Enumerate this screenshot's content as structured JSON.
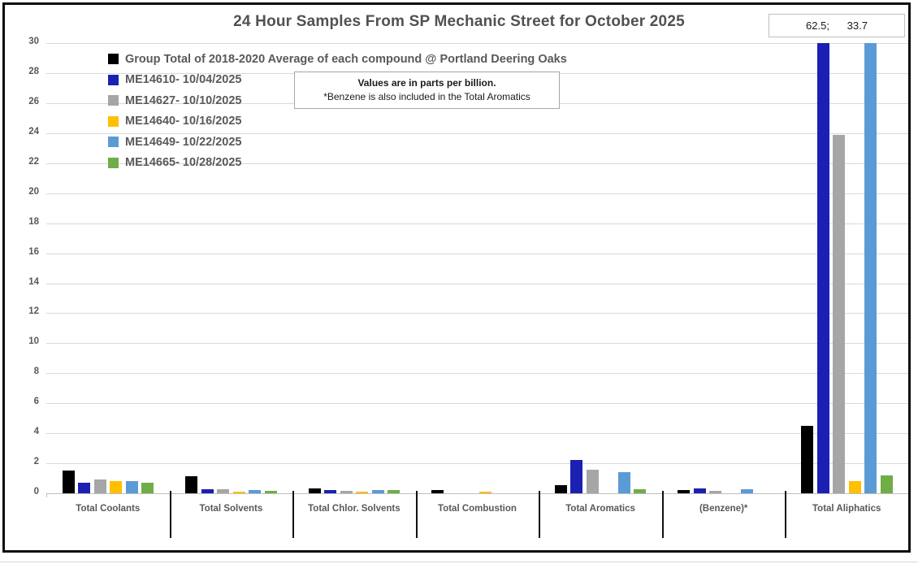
{
  "title": "24 Hour Samples From SP Mechanic Street for October 2025",
  "offscale_box": {
    "text": "62.5;      33.7",
    "meaning": "off-scale bar values for Total Aliphatics (ME14610 = 62.5, ME14649 = 33.7)"
  },
  "note": {
    "line1": "Values are in parts per billion.",
    "line2": "*Benzene is also included in the Total Aromatics"
  },
  "chart_data": {
    "type": "bar",
    "title": "24 Hour Samples From SP Mechanic Street for October 2025",
    "unit": "parts per billion",
    "categories": [
      "Total Coolants",
      "Total Solvents",
      "Total Chlor. Solvents",
      "Total Combustion",
      "Total Aromatics",
      "(Benzene)*",
      "Total Aliphatics"
    ],
    "series": [
      {
        "name": "Group Total of 2018-2020 Average of each compound @ Portland Deering Oaks",
        "color": "#000000",
        "values": [
          1.5,
          1.15,
          0.35,
          0.2,
          0.55,
          0.2,
          4.5
        ]
      },
      {
        "name": "ME14610- 10/04/2025",
        "color": "#1b20b3",
        "values": [
          0.7,
          0.3,
          0.2,
          0,
          2.2,
          0.35,
          62.5
        ]
      },
      {
        "name": "ME14627- 10/10/2025",
        "color": "#a6a6a6",
        "values": [
          0.9,
          0.3,
          0.15,
          0,
          1.6,
          0.15,
          23.9
        ]
      },
      {
        "name": "ME14640- 10/16/2025",
        "color": "#ffc000",
        "values": [
          0.8,
          0.1,
          0.1,
          0.1,
          0,
          0,
          0.8
        ]
      },
      {
        "name": "ME14649- 10/22/2025",
        "color": "#5b9bd5",
        "values": [
          0.8,
          0.2,
          0.2,
          0,
          1.4,
          0.25,
          33.7
        ]
      },
      {
        "name": "ME14665- 10/28/2025",
        "color": "#70ad47",
        "values": [
          0.7,
          0.15,
          0.2,
          0,
          0.3,
          0,
          1.2
        ]
      }
    ],
    "ylim": [
      0,
      30
    ],
    "ytick_step": 2,
    "grid": true,
    "legend_position": "top-left",
    "bars_clipped_at_ymax": [
      "Total Aliphatics: ME14610 (62.5)",
      "Total Aliphatics: ME14649 (33.7)"
    ]
  }
}
